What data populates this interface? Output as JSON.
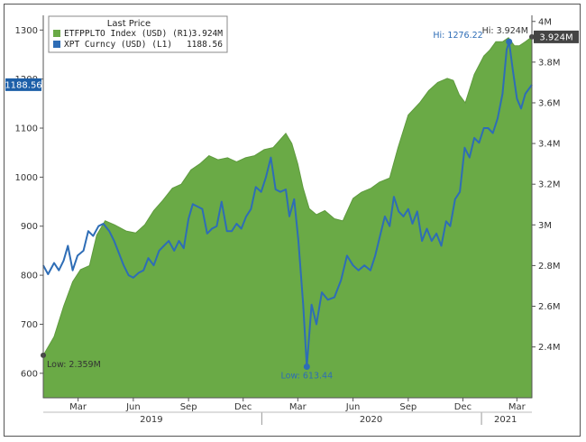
{
  "colors": {
    "area_fill": "#6aaa46",
    "area_stroke": "#5e9a3e",
    "line": "#2e6db6",
    "axis": "#555555",
    "badge_left": "#1d5fa8",
    "badge_right": "#444444"
  },
  "chart_data": {
    "type": "area",
    "legend": {
      "title": "Last Price",
      "entries": [
        {
          "name": "ETFPPLTO Index (USD) (R1)",
          "value": "3.924M",
          "color": "#6aaa46"
        },
        {
          "name": "XPT Curncy (USD) (L1)",
          "value": "1188.56",
          "color": "#2e6db6"
        }
      ]
    },
    "x_axis": {
      "range": [
        "2019-01-02",
        "2021-03-26"
      ],
      "month_ticks": [
        {
          "label": "Mar",
          "date": "2019-03-01"
        },
        {
          "label": "Jun",
          "date": "2019-06-01"
        },
        {
          "label": "Sep",
          "date": "2019-09-01"
        },
        {
          "label": "Dec",
          "date": "2019-12-01"
        },
        {
          "label": "Mar",
          "date": "2020-03-01"
        },
        {
          "label": "Jun",
          "date": "2020-06-01"
        },
        {
          "label": "Sep",
          "date": "2020-09-01"
        },
        {
          "label": "Dec",
          "date": "2020-12-01"
        },
        {
          "label": "Mar",
          "date": "2021-03-01"
        }
      ],
      "year_labels": [
        {
          "label": "2019",
          "date": "2019-07-01"
        },
        {
          "label": "2020",
          "date": "2020-07-01"
        },
        {
          "label": "2021",
          "date": "2021-02-10"
        }
      ],
      "year_dividers": [
        "2020-01-01",
        "2021-01-01"
      ]
    },
    "y_left": {
      "ylim": [
        550,
        1330
      ],
      "ticks": [
        "600",
        "700",
        "800",
        "900",
        "1000",
        "1100",
        "1200",
        "1300"
      ]
    },
    "y_right": {
      "ylim": [
        2.15,
        4.03
      ],
      "ticks": [
        "2.4M",
        "2.6M",
        "2.8M",
        "3M",
        "3.2M",
        "3.4M",
        "3.6M",
        "3.8M",
        "4M"
      ]
    },
    "series": [
      {
        "name": "ETFPPLTO Index (USD)",
        "axis": "right",
        "style": "area",
        "points": [
          [
            "2019-01-02",
            2.359
          ],
          [
            "2019-01-20",
            2.45
          ],
          [
            "2019-02-05",
            2.6
          ],
          [
            "2019-02-20",
            2.72
          ],
          [
            "2019-03-05",
            2.78
          ],
          [
            "2019-03-20",
            2.8
          ],
          [
            "2019-04-01",
            2.95
          ],
          [
            "2019-04-15",
            3.02
          ],
          [
            "2019-05-01",
            3.0
          ],
          [
            "2019-05-20",
            2.97
          ],
          [
            "2019-06-05",
            2.96
          ],
          [
            "2019-06-20",
            3.0
          ],
          [
            "2019-07-05",
            3.07
          ],
          [
            "2019-07-20",
            3.12
          ],
          [
            "2019-08-05",
            3.18
          ],
          [
            "2019-08-20",
            3.2
          ],
          [
            "2019-09-05",
            3.27
          ],
          [
            "2019-09-20",
            3.3
          ],
          [
            "2019-10-05",
            3.34
          ],
          [
            "2019-10-20",
            3.32
          ],
          [
            "2019-11-05",
            3.33
          ],
          [
            "2019-11-20",
            3.31
          ],
          [
            "2019-12-05",
            3.33
          ],
          [
            "2019-12-20",
            3.34
          ],
          [
            "2020-01-05",
            3.37
          ],
          [
            "2020-01-20",
            3.38
          ],
          [
            "2020-02-01",
            3.42
          ],
          [
            "2020-02-10",
            3.45
          ],
          [
            "2020-02-20",
            3.4
          ],
          [
            "2020-03-01",
            3.3
          ],
          [
            "2020-03-10",
            3.18
          ],
          [
            "2020-03-20",
            3.08
          ],
          [
            "2020-04-01",
            3.05
          ],
          [
            "2020-04-15",
            3.07
          ],
          [
            "2020-05-01",
            3.03
          ],
          [
            "2020-05-15",
            3.02
          ],
          [
            "2020-06-01",
            3.13
          ],
          [
            "2020-06-15",
            3.16
          ],
          [
            "2020-07-01",
            3.18
          ],
          [
            "2020-07-15",
            3.21
          ],
          [
            "2020-08-01",
            3.23
          ],
          [
            "2020-08-15",
            3.38
          ],
          [
            "2020-09-01",
            3.54
          ],
          [
            "2020-09-20",
            3.6
          ],
          [
            "2020-10-05",
            3.66
          ],
          [
            "2020-10-20",
            3.7
          ],
          [
            "2020-11-05",
            3.72
          ],
          [
            "2020-11-15",
            3.71
          ],
          [
            "2020-11-25",
            3.64
          ],
          [
            "2020-12-05",
            3.6
          ],
          [
            "2020-12-20",
            3.74
          ],
          [
            "2021-01-05",
            3.83
          ],
          [
            "2021-01-15",
            3.86
          ],
          [
            "2021-01-25",
            3.9
          ],
          [
            "2021-02-05",
            3.9
          ],
          [
            "2021-02-15",
            3.92
          ],
          [
            "2021-02-25",
            3.88
          ],
          [
            "2021-03-05",
            3.88
          ],
          [
            "2021-03-15",
            3.9
          ],
          [
            "2021-03-26",
            3.924
          ]
        ]
      },
      {
        "name": "XPT Curncy (USD)",
        "axis": "left",
        "style": "line",
        "points": [
          [
            "2019-01-02",
            820
          ],
          [
            "2019-01-10",
            802
          ],
          [
            "2019-01-20",
            825
          ],
          [
            "2019-01-28",
            810
          ],
          [
            "2019-02-05",
            830
          ],
          [
            "2019-02-12",
            860
          ],
          [
            "2019-02-20",
            810
          ],
          [
            "2019-02-28",
            840
          ],
          [
            "2019-03-10",
            850
          ],
          [
            "2019-03-18",
            890
          ],
          [
            "2019-03-26",
            880
          ],
          [
            "2019-04-04",
            900
          ],
          [
            "2019-04-12",
            905
          ],
          [
            "2019-04-22",
            890
          ],
          [
            "2019-04-30",
            870
          ],
          [
            "2019-05-08",
            845
          ],
          [
            "2019-05-16",
            820
          ],
          [
            "2019-05-24",
            800
          ],
          [
            "2019-06-01",
            795
          ],
          [
            "2019-06-10",
            805
          ],
          [
            "2019-06-18",
            810
          ],
          [
            "2019-06-26",
            835
          ],
          [
            "2019-07-05",
            820
          ],
          [
            "2019-07-14",
            850
          ],
          [
            "2019-07-22",
            860
          ],
          [
            "2019-07-30",
            870
          ],
          [
            "2019-08-08",
            850
          ],
          [
            "2019-08-16",
            870
          ],
          [
            "2019-08-24",
            855
          ],
          [
            "2019-09-01",
            915
          ],
          [
            "2019-09-08",
            945
          ],
          [
            "2019-09-16",
            940
          ],
          [
            "2019-09-24",
            935
          ],
          [
            "2019-10-02",
            885
          ],
          [
            "2019-10-10",
            895
          ],
          [
            "2019-10-18",
            900
          ],
          [
            "2019-10-26",
            950
          ],
          [
            "2019-11-04",
            890
          ],
          [
            "2019-11-12",
            890
          ],
          [
            "2019-11-20",
            905
          ],
          [
            "2019-11-28",
            895
          ],
          [
            "2019-12-06",
            920
          ],
          [
            "2019-12-14",
            935
          ],
          [
            "2019-12-22",
            980
          ],
          [
            "2019-12-31",
            970
          ],
          [
            "2020-01-08",
            1000
          ],
          [
            "2020-01-16",
            1040
          ],
          [
            "2020-01-24",
            975
          ],
          [
            "2020-02-01",
            970
          ],
          [
            "2020-02-10",
            975
          ],
          [
            "2020-02-16",
            920
          ],
          [
            "2020-02-24",
            955
          ],
          [
            "2020-03-02",
            870
          ],
          [
            "2020-03-10",
            740
          ],
          [
            "2020-03-16",
            613.44
          ],
          [
            "2020-03-24",
            740
          ],
          [
            "2020-04-01",
            700
          ],
          [
            "2020-04-10",
            765
          ],
          [
            "2020-04-20",
            750
          ],
          [
            "2020-05-01",
            755
          ],
          [
            "2020-05-12",
            790
          ],
          [
            "2020-05-22",
            840
          ],
          [
            "2020-06-01",
            820
          ],
          [
            "2020-06-10",
            810
          ],
          [
            "2020-06-20",
            820
          ],
          [
            "2020-06-30",
            810
          ],
          [
            "2020-07-08",
            840
          ],
          [
            "2020-07-16",
            880
          ],
          [
            "2020-07-24",
            920
          ],
          [
            "2020-08-01",
            900
          ],
          [
            "2020-08-08",
            960
          ],
          [
            "2020-08-16",
            930
          ],
          [
            "2020-08-24",
            920
          ],
          [
            "2020-09-01",
            935
          ],
          [
            "2020-09-08",
            905
          ],
          [
            "2020-09-16",
            930
          ],
          [
            "2020-09-24",
            870
          ],
          [
            "2020-10-02",
            895
          ],
          [
            "2020-10-10",
            870
          ],
          [
            "2020-10-18",
            885
          ],
          [
            "2020-10-26",
            860
          ],
          [
            "2020-11-03",
            910
          ],
          [
            "2020-11-10",
            900
          ],
          [
            "2020-11-18",
            955
          ],
          [
            "2020-11-26",
            970
          ],
          [
            "2020-12-04",
            1060
          ],
          [
            "2020-12-12",
            1040
          ],
          [
            "2020-12-20",
            1080
          ],
          [
            "2020-12-28",
            1070
          ],
          [
            "2021-01-05",
            1100
          ],
          [
            "2021-01-12",
            1100
          ],
          [
            "2021-01-20",
            1090
          ],
          [
            "2021-01-28",
            1120
          ],
          [
            "2021-02-05",
            1170
          ],
          [
            "2021-02-12",
            1260
          ],
          [
            "2021-02-16",
            1276.22
          ],
          [
            "2021-02-22",
            1220
          ],
          [
            "2021-03-01",
            1160
          ],
          [
            "2021-03-08",
            1140
          ],
          [
            "2021-03-15",
            1170
          ],
          [
            "2021-03-26",
            1188.56
          ]
        ]
      }
    ],
    "annotations": {
      "low_left": {
        "text": "Low: 613.44",
        "date": "2020-03-16",
        "value": 613.44
      },
      "high_left": {
        "text": "Hi: 1276.22",
        "date": "2021-02-16",
        "value": 1276.22
      },
      "low_right": {
        "text": "Low: 2.359M",
        "date": "2019-01-02",
        "value": 2.359
      },
      "high_right": {
        "text": "Hi: 3.924M",
        "date": "2021-03-26",
        "value": 3.924
      }
    },
    "badges": {
      "left": {
        "text": "1188.56",
        "value": 1188.56
      },
      "right": {
        "text": "3.924M",
        "value": 3.924
      }
    }
  }
}
